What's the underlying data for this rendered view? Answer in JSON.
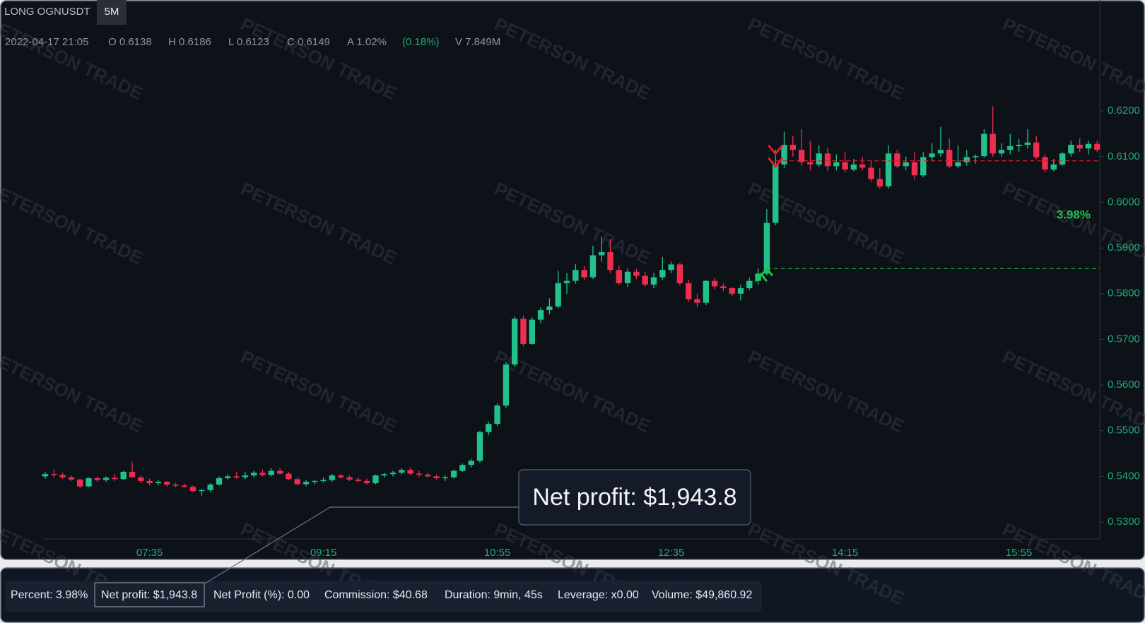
{
  "header": {
    "symbol": "LONG OGNUSDT",
    "interval": "5M",
    "info": [
      "2022-04-17 21:05",
      "O 0.6138",
      "H 0.6186",
      "L 0.6123",
      "C 0.6149",
      "A 1.02%",
      "(0.18%)",
      "V 7.849M"
    ]
  },
  "watermark": "PETERSON TRADE",
  "chart_data": {
    "type": "candlestick",
    "categories": [
      null,
      null,
      null,
      null,
      null,
      null,
      null,
      null,
      null,
      null,
      null,
      null,
      "07:35",
      null,
      null,
      null,
      null,
      null,
      null,
      null,
      null,
      null,
      null,
      null,
      null,
      null,
      null,
      null,
      null,
      null,
      null,
      null,
      "09:15",
      null,
      null,
      null,
      null,
      null,
      null,
      null,
      null,
      null,
      null,
      null,
      null,
      null,
      null,
      null,
      null,
      null,
      null,
      null,
      "10:55",
      null,
      null,
      null,
      null,
      null,
      null,
      null,
      null,
      null,
      null,
      null,
      null,
      null,
      null,
      null,
      null,
      null,
      null,
      null,
      "12:35",
      null,
      null,
      null,
      null,
      null,
      null,
      null,
      null,
      null,
      null,
      null,
      null,
      null,
      null,
      null,
      null,
      null,
      null,
      null,
      "14:15",
      null,
      null,
      null,
      null,
      null,
      null,
      null,
      null,
      null,
      null,
      null,
      null,
      null,
      null,
      null,
      null,
      null,
      null,
      null,
      "15:55",
      null,
      null,
      null,
      null,
      null,
      null,
      null,
      null,
      null
    ],
    "open": [
      0.54,
      0.5405,
      0.5403,
      0.5398,
      0.5393,
      0.5378,
      0.5396,
      0.5392,
      0.5397,
      0.5394,
      0.541,
      0.5398,
      0.539,
      0.5385,
      0.5388,
      0.5382,
      0.538,
      0.5377,
      0.5368,
      0.537,
      0.5382,
      0.5396,
      0.54,
      0.5398,
      0.5402,
      0.5408,
      0.5403,
      0.5412,
      0.5406,
      0.5394,
      0.5383,
      0.5388,
      0.539,
      0.5392,
      0.5402,
      0.5398,
      0.5393,
      0.539,
      0.5385,
      0.5402,
      0.5405,
      0.5408,
      0.5414,
      0.5406,
      0.5404,
      0.54,
      0.5396,
      0.5398,
      0.5412,
      0.5425,
      0.5434,
      0.5497,
      0.5515,
      0.5555,
      0.5645,
      0.5745,
      0.569,
      0.5743,
      0.5764,
      0.5772,
      0.5823,
      0.5828,
      0.5852,
      0.5836,
      0.5884,
      0.5891,
      0.5852,
      0.5823,
      0.5848,
      0.5839,
      0.582,
      0.5836,
      0.5852,
      0.5864,
      0.5823,
      0.5788,
      0.578,
      0.5828,
      0.5816,
      0.5812,
      0.58,
      0.5812,
      0.5828,
      0.5844,
      0.5955,
      0.6083,
      0.6126,
      0.6115,
      0.6088,
      0.6083,
      0.6107,
      0.6079,
      0.6088,
      0.6072,
      0.6083,
      0.6076,
      0.6051,
      0.6035,
      0.6107,
      0.6079,
      0.6088,
      0.6059,
      0.6099,
      0.6107,
      0.6115,
      0.6079,
      0.6088,
      0.6099,
      0.6101,
      0.615,
      0.6107,
      0.6115,
      0.6123,
      0.6126,
      0.6131,
      0.6099,
      0.6072,
      0.6083,
      0.6107,
      0.6126,
      0.6118,
      0.6128
    ],
    "high": [
      0.541,
      0.5415,
      0.5408,
      0.5402,
      0.5395,
      0.5398,
      0.54,
      0.54,
      0.5405,
      0.5412,
      0.5432,
      0.5402,
      0.5395,
      0.5392,
      0.539,
      0.5386,
      0.5384,
      0.538,
      0.5372,
      0.5385,
      0.54,
      0.5405,
      0.541,
      0.541,
      0.5412,
      0.5415,
      0.5418,
      0.5418,
      0.541,
      0.5398,
      0.5392,
      0.5393,
      0.5398,
      0.5405,
      0.5406,
      0.5402,
      0.5398,
      0.5395,
      0.5404,
      0.5408,
      0.5412,
      0.5418,
      0.542,
      0.5412,
      0.5408,
      0.5404,
      0.5402,
      0.5415,
      0.5428,
      0.5438,
      0.55,
      0.552,
      0.556,
      0.565,
      0.575,
      0.5752,
      0.5748,
      0.577,
      0.579,
      0.585,
      0.5845,
      0.5865,
      0.586,
      0.5905,
      0.5925,
      0.592,
      0.5862,
      0.5855,
      0.5855,
      0.5848,
      0.5845,
      0.588,
      0.587,
      0.5868,
      0.583,
      0.58,
      0.583,
      0.5835,
      0.5822,
      0.5815,
      0.582,
      0.5835,
      0.5855,
      0.5985,
      0.6115,
      0.6155,
      0.6145,
      0.616,
      0.6135,
      0.6125,
      0.612,
      0.6105,
      0.611,
      0.6095,
      0.61,
      0.609,
      0.6075,
      0.6125,
      0.6115,
      0.61,
      0.611,
      0.611,
      0.613,
      0.6165,
      0.614,
      0.6125,
      0.6115,
      0.6105,
      0.616,
      0.621,
      0.613,
      0.615,
      0.6138,
      0.616,
      0.6145,
      0.6105,
      0.6095,
      0.611,
      0.6135,
      0.614,
      0.6135,
      0.6135
    ],
    "low": [
      0.5395,
      0.5398,
      0.5395,
      0.539,
      0.5375,
      0.5376,
      0.5388,
      0.5388,
      0.539,
      0.5392,
      0.5405,
      0.5385,
      0.538,
      0.538,
      0.5378,
      0.5376,
      0.5375,
      0.5365,
      0.5358,
      0.5365,
      0.538,
      0.5392,
      0.5395,
      0.5394,
      0.5398,
      0.54,
      0.54,
      0.5404,
      0.5392,
      0.538,
      0.5378,
      0.5383,
      0.5386,
      0.5388,
      0.5395,
      0.539,
      0.5388,
      0.5382,
      0.5383,
      0.5398,
      0.54,
      0.5404,
      0.5402,
      0.5398,
      0.5398,
      0.5393,
      0.539,
      0.5395,
      0.541,
      0.542,
      0.543,
      0.549,
      0.551,
      0.555,
      0.564,
      0.5685,
      0.5688,
      0.5735,
      0.5755,
      0.5768,
      0.58,
      0.5822,
      0.583,
      0.5832,
      0.587,
      0.5845,
      0.5818,
      0.5815,
      0.5832,
      0.5815,
      0.5812,
      0.583,
      0.5845,
      0.5818,
      0.5782,
      0.577,
      0.5775,
      0.581,
      0.5805,
      0.5795,
      0.5785,
      0.5808,
      0.582,
      0.584,
      0.595,
      0.6075,
      0.61,
      0.608,
      0.607,
      0.6078,
      0.6068,
      0.607,
      0.6065,
      0.6068,
      0.607,
      0.6045,
      0.603,
      0.603,
      0.6075,
      0.607,
      0.605,
      0.6055,
      0.609,
      0.61,
      0.6075,
      0.6075,
      0.608,
      0.6085,
      0.6098,
      0.61,
      0.61,
      0.6105,
      0.611,
      0.6118,
      0.6095,
      0.6065,
      0.6068,
      0.608,
      0.61,
      0.611,
      0.6105,
      0.611
    ],
    "close": [
      0.5405,
      0.5403,
      0.5398,
      0.5393,
      0.5378,
      0.5396,
      0.5392,
      0.5397,
      0.5394,
      0.541,
      0.5398,
      0.539,
      0.5385,
      0.5388,
      0.5382,
      0.538,
      0.5377,
      0.5368,
      0.537,
      0.5382,
      0.5396,
      0.54,
      0.5398,
      0.5402,
      0.5408,
      0.5403,
      0.5412,
      0.5406,
      0.5394,
      0.5383,
      0.5388,
      0.539,
      0.5392,
      0.5402,
      0.5398,
      0.5393,
      0.539,
      0.5385,
      0.5402,
      0.5405,
      0.5408,
      0.5414,
      0.5406,
      0.5404,
      0.54,
      0.5396,
      0.5398,
      0.5412,
      0.5425,
      0.5434,
      0.5497,
      0.5515,
      0.5555,
      0.5645,
      0.5745,
      0.569,
      0.5743,
      0.5764,
      0.5772,
      0.5823,
      0.5828,
      0.5852,
      0.5836,
      0.5884,
      0.5891,
      0.5852,
      0.5823,
      0.5848,
      0.5839,
      0.582,
      0.5836,
      0.5852,
      0.5864,
      0.5823,
      0.5788,
      0.578,
      0.5828,
      0.5816,
      0.5812,
      0.58,
      0.5812,
      0.5828,
      0.5844,
      0.5955,
      0.6083,
      0.6126,
      0.6115,
      0.6088,
      0.6083,
      0.6107,
      0.6079,
      0.6088,
      0.6072,
      0.6083,
      0.6076,
      0.6051,
      0.6035,
      0.6107,
      0.6079,
      0.6088,
      0.6059,
      0.6099,
      0.6107,
      0.6115,
      0.6079,
      0.6088,
      0.6099,
      0.6101,
      0.615,
      0.6107,
      0.6115,
      0.6123,
      0.6126,
      0.6131,
      0.6099,
      0.6072,
      0.6083,
      0.6107,
      0.6126,
      0.6118,
      0.6128,
      0.6115
    ],
    "ylim": [
      0.5263,
      0.6443
    ],
    "yticks": [
      {
        "value": 0.53,
        "label": "0.5300"
      },
      {
        "value": 0.54,
        "label": "0.5400"
      },
      {
        "value": 0.55,
        "label": "0.5500"
      },
      {
        "value": 0.56,
        "label": "0.5600"
      },
      {
        "value": 0.57,
        "label": "0.5700"
      },
      {
        "value": 0.58,
        "label": "0.5800"
      },
      {
        "value": 0.59,
        "label": "0.5900"
      },
      {
        "value": 0.6,
        "label": "0.6000"
      },
      {
        "value": 0.61,
        "label": "0.6100"
      },
      {
        "value": 0.62,
        "label": "0.6200"
      }
    ],
    "up_color": "#22c08a",
    "down_color": "#ee2d4f",
    "entry": {
      "index": 83,
      "price": 0.5855,
      "color": "#1fc244"
    },
    "exit": {
      "index": 84,
      "price": 0.6091,
      "color": "#d81f2a"
    },
    "profit_label": {
      "value": 3.98,
      "label": "3.98%"
    }
  },
  "callout": "Net profit: $1,943.8",
  "stats": [
    "Percent: 3.98%",
    "Net profit: $1,943.8",
    "Net Profit (%): 0.00",
    "Commission: $40.68",
    "Duration: 9min, 45s",
    "Leverage: x0.00",
    "Volume: $49,860.92"
  ]
}
